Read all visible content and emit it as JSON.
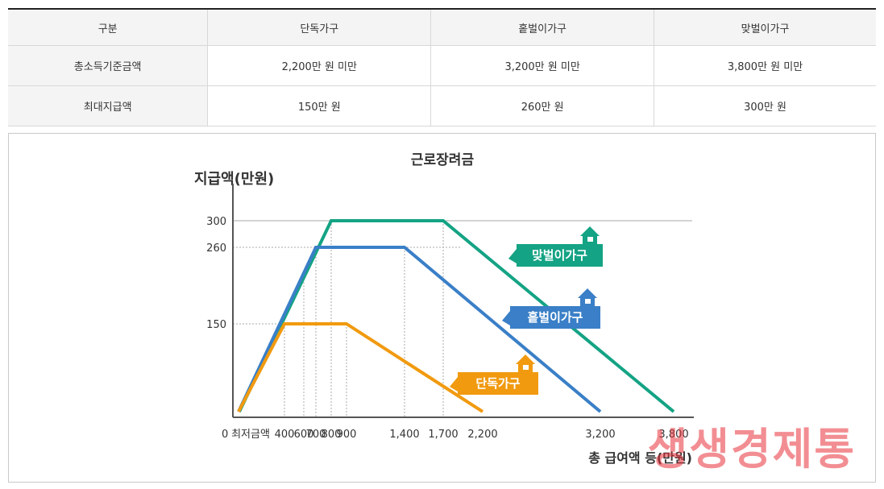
{
  "table": {
    "headers": [
      "구분",
      "단독가구",
      "홑벌이가구",
      "맞벌이가구"
    ],
    "rows": [
      [
        "총소득기준금액",
        "2,200만 원 미만",
        "3,200만 원 미만",
        "3,800만 원 미만"
      ],
      [
        "최대지급액",
        "150만 원",
        "260만 원",
        "300만 원"
      ]
    ]
  },
  "chart_data": {
    "type": "line",
    "title": "근로장려금",
    "xlabel": "총 급여액 등(만원)",
    "ylabel": "지급액(만원)",
    "x_ticks": [
      "0",
      "최저금액",
      "400",
      "600",
      "700",
      "800",
      "900",
      "1,400",
      "1,700",
      "2,200",
      "3,200",
      "3,800"
    ],
    "y_ticks": [
      "300",
      "260",
      "150"
    ],
    "series": [
      {
        "name": "맞벌이가구",
        "color": "#14a384",
        "points": [
          [
            100,
            0
          ],
          [
            800,
            300
          ],
          [
            1700,
            300
          ],
          [
            3800,
            0
          ]
        ]
      },
      {
        "name": "홑벌이가구",
        "color": "#3a7fc7",
        "points": [
          [
            0,
            0
          ],
          [
            700,
            260
          ],
          [
            1400,
            260
          ],
          [
            3200,
            0
          ]
        ]
      },
      {
        "name": "단독가구",
        "color": "#f19a0f",
        "points": [
          [
            0,
            0
          ],
          [
            400,
            150
          ],
          [
            900,
            150
          ],
          [
            2200,
            0
          ]
        ]
      }
    ],
    "xlim": [
      0,
      3800
    ],
    "ylim": [
      0,
      300
    ],
    "grid": true
  },
  "watermark": "생생경제통"
}
